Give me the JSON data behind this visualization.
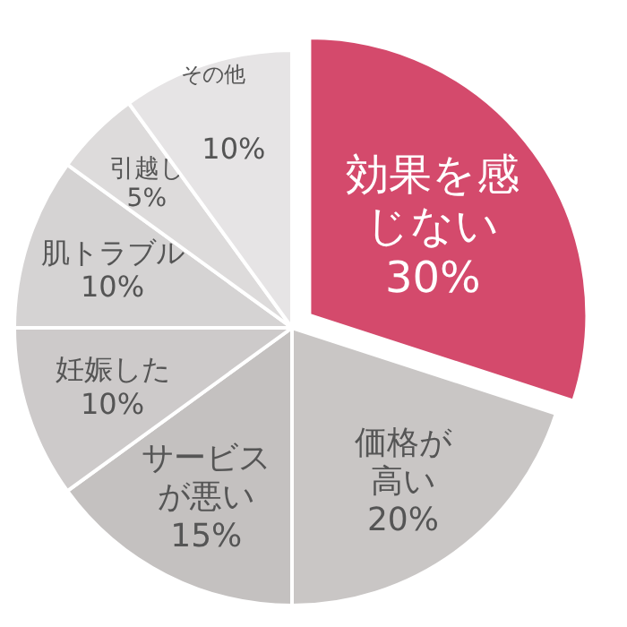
{
  "chart_data": {
    "type": "pie",
    "categories": [
      "効果を感じない",
      "価格が高い",
      "サービスが悪い",
      "妊娠した",
      "肌トラブル",
      "引越し",
      "その他"
    ],
    "values": [
      30,
      20,
      15,
      10,
      10,
      5,
      10
    ],
    "value_labels": [
      "30%",
      "20%",
      "15%",
      "10%",
      "10%",
      "5%",
      "10%"
    ],
    "colors": [
      "#d44a6c",
      "#c9c6c5",
      "#c4c1c0",
      "#cdcaca",
      "#d5d3d3",
      "#dddbdb",
      "#e6e4e5"
    ]
  }
}
